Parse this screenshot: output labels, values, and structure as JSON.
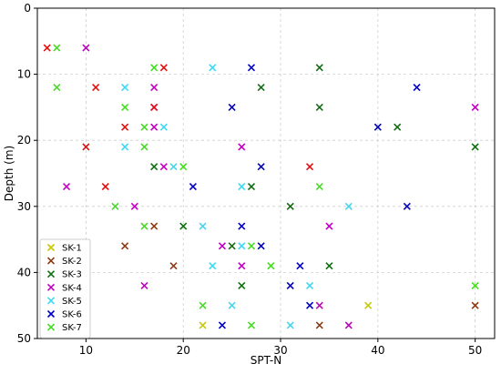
{
  "chart_data": {
    "type": "scatter",
    "xlabel": "SPT-N",
    "ylabel": "Depth (m)",
    "xlim": [
      5,
      52
    ],
    "ylim": [
      50,
      0
    ],
    "y_inverted": true,
    "x_ticks": [
      10,
      20,
      30,
      40,
      50
    ],
    "y_ticks": [
      0,
      10,
      20,
      30,
      40,
      50
    ],
    "grid": true,
    "marker": "x",
    "legend_position": "bottom-left",
    "series": [
      {
        "name": "SK-1",
        "color": "#c8c800",
        "points": [
          [
            22,
            48
          ],
          [
            39,
            45
          ]
        ]
      },
      {
        "name": "SK-2",
        "color": "#8b3a14",
        "points": [
          [
            14,
            36
          ],
          [
            17,
            33
          ],
          [
            19,
            39
          ],
          [
            34,
            48
          ],
          [
            50,
            45
          ]
        ]
      },
      {
        "name": "SK-3",
        "color": "#0f6e0f",
        "points": [
          [
            34,
            9
          ],
          [
            28,
            12
          ],
          [
            34,
            15
          ],
          [
            42,
            18
          ],
          [
            50,
            21
          ],
          [
            17,
            24
          ],
          [
            27,
            27
          ],
          [
            31,
            30
          ],
          [
            20,
            33
          ],
          [
            25,
            36
          ],
          [
            35,
            39
          ],
          [
            26,
            42
          ]
        ]
      },
      {
        "name": "SK-4",
        "color": "#c000c0",
        "points": [
          [
            10,
            6
          ],
          [
            17,
            12
          ],
          [
            17,
            15
          ],
          [
            17,
            18
          ],
          [
            26,
            21
          ],
          [
            18,
            24
          ],
          [
            8,
            27
          ],
          [
            15,
            30
          ],
          [
            35,
            33
          ],
          [
            24,
            36
          ],
          [
            26,
            39
          ],
          [
            16,
            42
          ],
          [
            34,
            45
          ],
          [
            37,
            48
          ],
          [
            50,
            15
          ]
        ]
      },
      {
        "name": "SK-5",
        "color": "#40d8f0",
        "points": [
          [
            23,
            9
          ],
          [
            14,
            12
          ],
          [
            18,
            18
          ],
          [
            14,
            21
          ],
          [
            19,
            24
          ],
          [
            26,
            27
          ],
          [
            37,
            30
          ],
          [
            22,
            33
          ],
          [
            26,
            36
          ],
          [
            23,
            39
          ],
          [
            33,
            42
          ],
          [
            25,
            45
          ],
          [
            31,
            48
          ]
        ]
      },
      {
        "name": "SK-6",
        "color": "#0000c0",
        "points": [
          [
            27,
            9
          ],
          [
            44,
            12
          ],
          [
            25,
            15
          ],
          [
            40,
            18
          ],
          [
            28,
            24
          ],
          [
            21,
            27
          ],
          [
            43,
            30
          ],
          [
            26,
            33
          ],
          [
            28,
            36
          ],
          [
            32,
            39
          ],
          [
            31,
            42
          ],
          [
            33,
            45
          ],
          [
            24,
            48
          ]
        ]
      },
      {
        "name": "SK-7",
        "color": "#44dd22",
        "points": [
          [
            7,
            6
          ],
          [
            17,
            9
          ],
          [
            7,
            12
          ],
          [
            14,
            15
          ],
          [
            16,
            18
          ],
          [
            16,
            21
          ],
          [
            20,
            24
          ],
          [
            34,
            27
          ],
          [
            13,
            30
          ],
          [
            16,
            33
          ],
          [
            27,
            36
          ],
          [
            29,
            39
          ],
          [
            50,
            42
          ],
          [
            22,
            45
          ],
          [
            27,
            48
          ]
        ]
      },
      {
        "name": "",
        "color": "#e01010",
        "points": [
          [
            6,
            6
          ],
          [
            18,
            9
          ],
          [
            11,
            12
          ],
          [
            17,
            15
          ],
          [
            14,
            18
          ],
          [
            10,
            21
          ],
          [
            33,
            24
          ],
          [
            12,
            27
          ]
        ]
      }
    ]
  }
}
